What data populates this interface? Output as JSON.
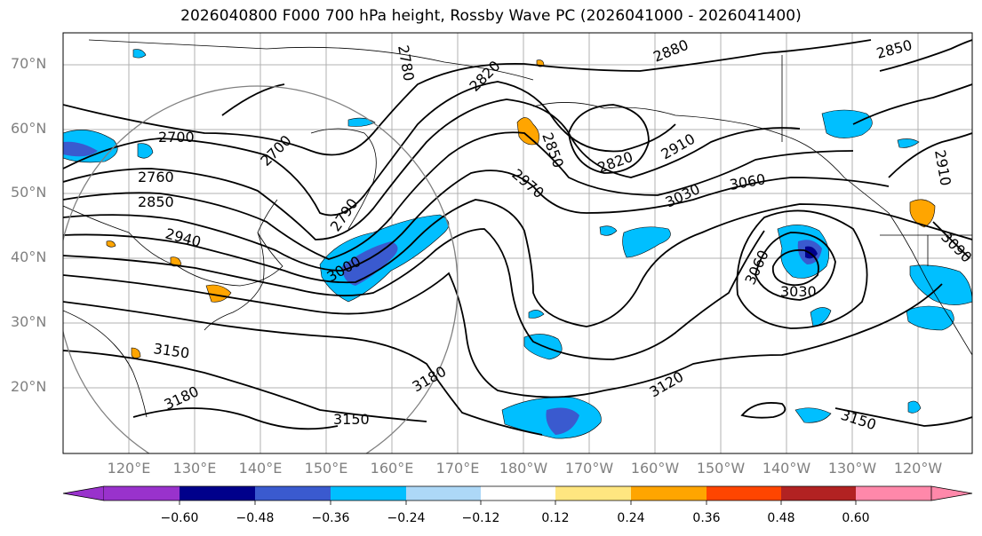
{
  "title": "2026040800 F000 700 hPa height, Rossby Wave PC (2026041000 - 2026041400)",
  "colors": {
    "bins": [
      "#9932cc",
      "#00008b",
      "#3a5acf",
      "#00bfff",
      "#add8f7",
      "#ffffff",
      "#ffe680",
      "#ffa500",
      "#ff4500",
      "#b22222",
      "#ff88aa"
    ],
    "contour": "#000000",
    "grid": "#b0b0b0",
    "circle": "#808080"
  },
  "map": {
    "lat_labels": [
      "70°N",
      "60°N",
      "50°N",
      "40°N",
      "30°N",
      "20°N"
    ],
    "lon_labels": [
      "120°E",
      "130°E",
      "140°E",
      "150°E",
      "160°E",
      "170°E",
      "180°W",
      "170°W",
      "160°W",
      "150°W",
      "140°W",
      "130°W",
      "120°W"
    ],
    "contour_labels": [
      "2700",
      "2700",
      "2760",
      "2850",
      "2940",
      "3150",
      "3180",
      "2780",
      "2820",
      "2790",
      "3000",
      "2850",
      "2820",
      "2880",
      "2970",
      "2910",
      "3030",
      "3060",
      "3060",
      "3030",
      "3180",
      "3120",
      "3150",
      "3150",
      "2850",
      "2910",
      "3090"
    ],
    "colorbar_ticks": [
      "−0.60",
      "−0.48",
      "−0.36",
      "−0.24",
      "−0.12",
      "0.12",
      "0.24",
      "0.36",
      "0.48",
      "0.60"
    ]
  }
}
